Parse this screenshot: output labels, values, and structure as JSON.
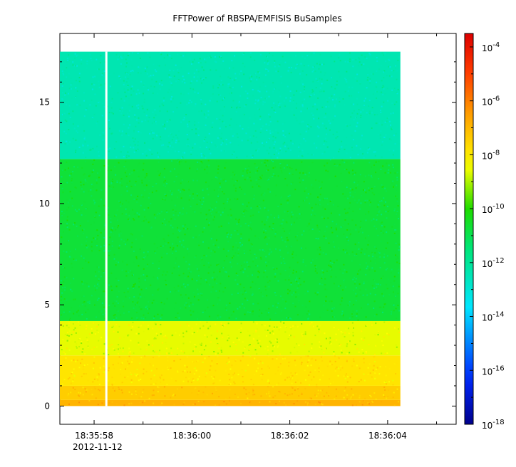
{
  "chart_data": {
    "type": "heatmap",
    "title": "FFTPower of RBSPA/EMFISIS  BuSamples",
    "xlabel": "",
    "ylabel": "",
    "x_tick_labels": [
      "18:35:58",
      "18:36:00",
      "18:36:02",
      "18:36:04"
    ],
    "x_date_label": "2012-11-12",
    "x_range_s": [
      57.3,
      65.4
    ],
    "x_tick_values_s": [
      58,
      60,
      62,
      64
    ],
    "x_minor_tick_values_s": [
      59,
      61,
      63,
      65
    ],
    "data_x_range_s": [
      57.3,
      64.26
    ],
    "data_gap_s": 58.25,
    "y_ticks": [
      0,
      5,
      10,
      15
    ],
    "ylim": [
      -0.9,
      18.4
    ],
    "data_y_range": [
      0.0,
      17.5
    ],
    "colorbar": {
      "scale": "log",
      "range_exp": [
        -18,
        -3.5
      ],
      "tick_bases": [
        "10",
        "10",
        "10",
        "10",
        "10",
        "10",
        "10",
        "10"
      ],
      "tick_exponents": [
        "-4",
        "-6",
        "-8",
        "-10",
        "-12",
        "-14",
        "-16",
        "-18"
      ],
      "tick_exp_values": [
        -4,
        -6,
        -8,
        -10,
        -12,
        -14,
        -16,
        -18
      ],
      "colormap": "blue-cyan-green-yellow-orange-red"
    },
    "power_log10_by_frequency": [
      {
        "frequency_range": [
          0.0,
          0.3
        ],
        "log10_power": -6.9
      },
      {
        "frequency_range": [
          0.3,
          1.0
        ],
        "log10_power": -7.4
      },
      {
        "frequency_range": [
          1.0,
          2.5
        ],
        "log10_power": -7.9
      },
      {
        "frequency_range": [
          2.5,
          4.2
        ],
        "log10_power": -8.6
      },
      {
        "frequency_range": [
          4.2,
          12.2
        ],
        "log10_power": -10.7
      },
      {
        "frequency_range": [
          12.2,
          17.5
        ],
        "log10_power": -12.4
      }
    ],
    "grid": false
  }
}
